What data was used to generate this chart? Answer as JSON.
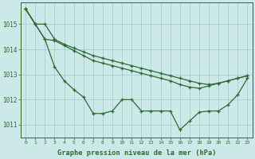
{
  "line1": {
    "x": [
      0,
      1,
      2,
      3,
      4,
      5,
      6,
      7,
      8,
      9,
      10,
      11,
      12,
      13,
      14,
      15,
      16,
      17,
      18,
      19,
      20,
      21,
      22,
      23
    ],
    "y": [
      1015.6,
      1015.0,
      1015.0,
      1014.4,
      1014.2,
      1014.05,
      1013.9,
      1013.75,
      1013.65,
      1013.55,
      1013.45,
      1013.35,
      1013.25,
      1013.15,
      1013.05,
      1012.95,
      1012.85,
      1012.75,
      1012.65,
      1012.6,
      1012.65,
      1012.75,
      1012.85,
      1012.95
    ]
  },
  "line2": {
    "x": [
      0,
      1,
      2,
      3,
      4,
      5,
      6,
      7,
      8,
      9,
      10,
      11,
      12,
      13,
      14,
      15,
      16,
      17,
      18,
      19,
      20,
      21,
      22,
      23
    ],
    "y": [
      1015.6,
      1015.0,
      1014.4,
      1014.35,
      1014.15,
      1013.95,
      1013.75,
      1013.55,
      1013.45,
      1013.35,
      1013.25,
      1013.15,
      1013.05,
      1012.95,
      1012.85,
      1012.75,
      1012.6,
      1012.5,
      1012.45,
      1012.55,
      1012.65,
      1012.75,
      1012.85,
      1012.95
    ]
  },
  "line3": {
    "x": [
      0,
      1,
      2,
      3,
      4,
      5,
      6,
      7,
      8,
      9,
      10,
      11,
      12,
      13,
      14,
      15,
      16,
      17,
      18,
      19,
      20,
      21,
      22,
      23
    ],
    "y": [
      1015.6,
      1015.0,
      1014.4,
      1013.3,
      1012.75,
      1012.4,
      1012.1,
      1011.45,
      1011.45,
      1011.55,
      1012.0,
      1012.0,
      1011.55,
      1011.55,
      1011.55,
      1011.55,
      1010.8,
      1011.15,
      1011.5,
      1011.55,
      1011.55,
      1011.8,
      1012.2,
      1012.85
    ]
  },
  "line_color": "#2d6a2d",
  "bg_color": "#cce8e8",
  "grid_color": "#99cccc",
  "xlabel": "Graphe pression niveau de la mer (hPa)",
  "ylim": [
    1010.5,
    1015.85
  ],
  "xlim": [
    -0.5,
    23.5
  ],
  "yticks": [
    1011,
    1012,
    1013,
    1014,
    1015
  ],
  "xticks": [
    0,
    1,
    2,
    3,
    4,
    5,
    6,
    7,
    8,
    9,
    10,
    11,
    12,
    13,
    14,
    15,
    16,
    17,
    18,
    19,
    20,
    21,
    22,
    23
  ],
  "marker": "+",
  "markersize": 3.5,
  "linewidth": 0.9
}
